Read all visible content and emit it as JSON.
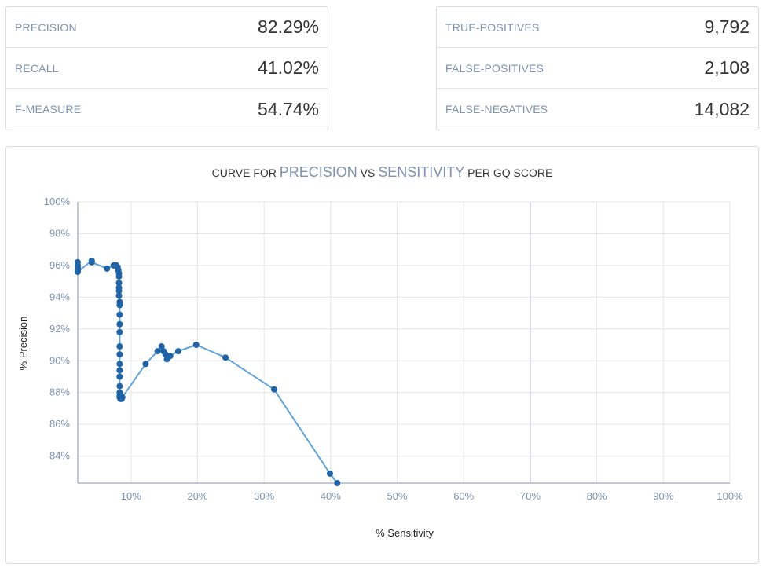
{
  "metrics_left": [
    {
      "label": "PRECISION",
      "value": "82.29%"
    },
    {
      "label": "RECALL",
      "value": "41.02%"
    },
    {
      "label": "F-MEASURE",
      "value": "54.74%"
    }
  ],
  "metrics_right": [
    {
      "label": "TRUE-POSITIVES",
      "value": "9,792"
    },
    {
      "label": "FALSE-POSITIVES",
      "value": "2,108"
    },
    {
      "label": "FALSE-NEGATIVES",
      "value": "14,082"
    }
  ],
  "colors": {
    "line": "#5ea4dc",
    "point": "#1f63a8",
    "grid": "#e6e6e6",
    "axis": "#7d93b2"
  },
  "chart_data": {
    "type": "line",
    "title_parts": [
      "CURVE FOR ",
      "PRECISION",
      " VS ",
      "SENSITIVITY",
      " PER GQ SCORE"
    ],
    "xlabel": "% Sensitivity",
    "ylabel": "% Precision",
    "xlim": [
      2,
      100
    ],
    "ylim": [
      82.3,
      100
    ],
    "x_ticks": [
      10,
      20,
      30,
      40,
      50,
      60,
      70,
      80,
      90,
      100
    ],
    "x_tick_labels": [
      "10%",
      "20%",
      "30%",
      "40%",
      "50%",
      "60%",
      "70%",
      "80%",
      "90%",
      "100%"
    ],
    "y_ticks": [
      84,
      86,
      88,
      90,
      92,
      94,
      96,
      98,
      100
    ],
    "y_tick_labels": [
      "84%",
      "86%",
      "88%",
      "90%",
      "92%",
      "94%",
      "96%",
      "98%",
      "100%"
    ],
    "highlight_gridline_x": 70,
    "series": [
      {
        "x": [
          2.0,
          2.0,
          2.0,
          2.0,
          2.0,
          2.0,
          4.1,
          4.1,
          6.4,
          7.4,
          7.8,
          8.0,
          8.1,
          8.2,
          8.2,
          8.2,
          8.2,
          8.2,
          8.2,
          8.3,
          8.3,
          8.3,
          8.3,
          8.3,
          8.3,
          8.3,
          8.3,
          8.3,
          8.3,
          8.3,
          8.3,
          8.3,
          8.3,
          8.4,
          8.5,
          8.6,
          8.7,
          12.2,
          14.0,
          14.6,
          14.9,
          15.2,
          15.4,
          15.9,
          17.1,
          19.8,
          24.2,
          31.5,
          39.9,
          41.0
        ],
        "y": [
          96.2,
          96.0,
          95.9,
          95.8,
          95.7,
          95.6,
          96.3,
          96.2,
          95.8,
          96.0,
          96.0,
          95.9,
          95.7,
          95.5,
          95.3,
          94.9,
          94.6,
          94.4,
          94.1,
          93.7,
          93.5,
          92.9,
          92.3,
          91.8,
          90.9,
          90.4,
          89.8,
          89.4,
          89.0,
          88.4,
          88.0,
          87.8,
          87.7,
          87.6,
          87.6,
          87.6,
          87.7,
          89.8,
          90.6,
          90.9,
          90.6,
          90.4,
          90.1,
          90.3,
          90.6,
          91.0,
          90.2,
          88.2,
          82.9,
          82.3
        ]
      }
    ]
  }
}
